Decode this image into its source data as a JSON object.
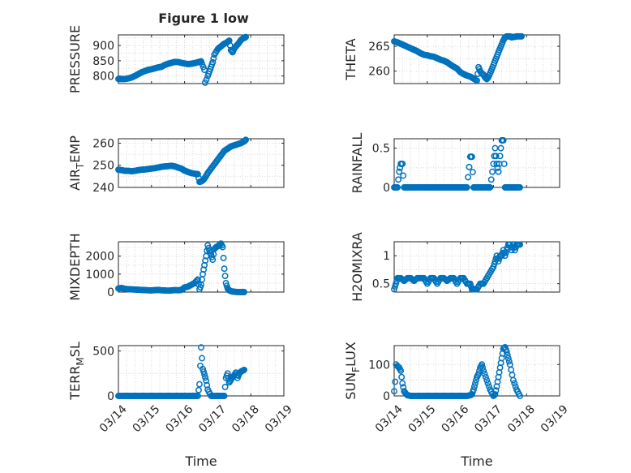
{
  "figure": {
    "title": "Figure 1 low"
  },
  "colors": {
    "series": "#0072bd",
    "axes": "#262626",
    "grid": "#d9d9d9"
  },
  "chart_data": [
    {
      "id": "pressure",
      "type": "scatter",
      "title": "Figure 1 low",
      "ylabel": "PRESSURE",
      "ylabel_sub": "",
      "ylabel_tail": "",
      "xlabel": "",
      "show_x_ticks": false,
      "xlim": [
        0,
        5
      ],
      "ylim": [
        775,
        935
      ],
      "yticks": [
        800,
        850,
        900
      ],
      "x": [
        0,
        0.1,
        0.2,
        0.3,
        0.4,
        0.5,
        0.6,
        0.7,
        0.8,
        0.9,
        1.0,
        1.1,
        1.2,
        1.3,
        1.4,
        1.5,
        1.6,
        1.7,
        1.8,
        1.9,
        2.0,
        2.1,
        2.2,
        2.3,
        2.4,
        2.5,
        2.6,
        2.62,
        2.66,
        2.7,
        2.75,
        2.8,
        2.85,
        2.9,
        3.0,
        3.05,
        3.1,
        3.15,
        3.2,
        3.25,
        3.3,
        3.35,
        3.4,
        3.45,
        3.5,
        3.55,
        3.6,
        3.65,
        3.7,
        3.75,
        3.8,
        3.85
      ],
      "y": [
        790,
        790,
        790,
        792,
        795,
        800,
        806,
        812,
        816,
        820,
        822,
        825,
        828,
        830,
        836,
        840,
        843,
        846,
        846,
        843,
        841,
        839,
        840,
        842,
        845,
        848,
        820,
        778,
        788,
        800,
        815,
        830,
        845,
        870,
        888,
        893,
        897,
        902,
        906,
        908,
        912,
        916,
        885,
        878,
        890,
        897,
        903,
        910,
        918,
        922,
        925,
        928
      ]
    },
    {
      "id": "theta",
      "type": "scatter",
      "ylabel": "THETA",
      "ylabel_sub": "",
      "ylabel_tail": "",
      "xlabel": "",
      "show_x_ticks": false,
      "xlim": [
        0,
        5
      ],
      "ylim": [
        257.5,
        267.3
      ],
      "yticks": [
        260,
        265
      ],
      "x": [
        0,
        0.1,
        0.2,
        0.3,
        0.4,
        0.5,
        0.6,
        0.7,
        0.8,
        0.9,
        1.0,
        1.1,
        1.2,
        1.3,
        1.4,
        1.5,
        1.6,
        1.7,
        1.8,
        1.9,
        2.0,
        2.1,
        2.2,
        2.3,
        2.4,
        2.5,
        2.55,
        2.6,
        2.65,
        2.7,
        2.75,
        2.8,
        2.85,
        2.9,
        2.95,
        3.0,
        3.05,
        3.1,
        3.15,
        3.2,
        3.25,
        3.3,
        3.35,
        3.4,
        3.45,
        3.5,
        3.55,
        3.6,
        3.65,
        3.7,
        3.75,
        3.8,
        3.85
      ],
      "y": [
        266,
        265.8,
        265.5,
        265.2,
        264.9,
        264.6,
        264.3,
        264.0,
        263.6,
        263.3,
        263.2,
        263.0,
        262.9,
        262.6,
        262.3,
        262.1,
        261.8,
        261.3,
        260.9,
        260.5,
        259.8,
        259.4,
        259.1,
        258.9,
        258.5,
        258.1,
        260.8,
        260.0,
        259.5,
        259.3,
        258.7,
        258.4,
        258.8,
        259.6,
        260.4,
        261.2,
        262.1,
        262.9,
        263.8,
        264.6,
        265.4,
        266.2,
        266.8,
        267,
        267,
        267,
        266.8,
        266.9,
        266.9,
        267,
        267,
        267,
        267
      ]
    },
    {
      "id": "air-temp",
      "type": "scatter",
      "ylabel": "AIR",
      "ylabel_sub": "T",
      "ylabel_tail": "EMP",
      "xlabel": "",
      "show_x_ticks": false,
      "xlim": [
        0,
        5
      ],
      "ylim": [
        240,
        262
      ],
      "yticks": [
        240,
        250,
        260
      ],
      "x": [
        0,
        0.1,
        0.2,
        0.3,
        0.4,
        0.5,
        0.6,
        0.7,
        0.8,
        0.9,
        1.0,
        1.1,
        1.2,
        1.3,
        1.4,
        1.5,
        1.6,
        1.7,
        1.8,
        1.9,
        2.0,
        2.1,
        2.2,
        2.3,
        2.4,
        2.45,
        2.5,
        2.55,
        2.6,
        2.65,
        2.7,
        2.8,
        2.9,
        3.0,
        3.1,
        3.2,
        3.3,
        3.4,
        3.5,
        3.6,
        3.7,
        3.8,
        3.85
      ],
      "y": [
        248,
        247.8,
        247.5,
        247.5,
        247.3,
        247.5,
        247.8,
        248.0,
        248.1,
        248.3,
        248.5,
        248.7,
        249.0,
        249.3,
        249.5,
        249.6,
        249.8,
        249.5,
        249.0,
        248.5,
        247.6,
        247.0,
        246.5,
        246.2,
        246.0,
        242.5,
        242.7,
        243.2,
        244.0,
        245.2,
        246.5,
        248.5,
        250.5,
        252.5,
        254.5,
        256.5,
        257.5,
        258.5,
        259.0,
        259.5,
        260.0,
        260.8,
        261.5
      ]
    },
    {
      "id": "rainfall",
      "type": "scatter",
      "ylabel": "RAINFALL",
      "ylabel_sub": "",
      "ylabel_tail": "",
      "xlabel": "",
      "show_x_ticks": false,
      "xlim": [
        0,
        5
      ],
      "ylim": [
        0,
        0.62
      ],
      "yticks": [
        0,
        0.5
      ],
      "ytick_labels": [
        "0",
        "0.5"
      ],
      "x": [
        0,
        0.1,
        0.15,
        0.2,
        0.25,
        0.3,
        0.4,
        0.5,
        0.6,
        0.7,
        0.8,
        0.9,
        1.0,
        1.2,
        1.4,
        1.6,
        1.8,
        2.0,
        2.2,
        2.3,
        2.35,
        2.4,
        2.5,
        2.6,
        2.7,
        2.8,
        2.9,
        3.0,
        3.05,
        3.1,
        3.15,
        3.2,
        3.25,
        3.3,
        3.35,
        3.4,
        3.5,
        3.6,
        3.7,
        3.8
      ],
      "y": [
        0,
        0,
        0.2,
        0.3,
        0.3,
        0,
        0,
        0,
        0,
        0,
        0,
        0,
        0,
        0,
        0,
        0,
        0,
        0,
        0,
        0.39,
        0.39,
        0,
        0,
        0,
        0,
        0,
        0,
        0.3,
        0.5,
        0.3,
        0.2,
        0.4,
        0.6,
        0.6,
        0,
        0,
        0,
        0,
        0,
        0
      ]
    },
    {
      "id": "mixdepth",
      "type": "scatter",
      "ylabel": "MIXDEPTH",
      "ylabel_sub": "",
      "ylabel_tail": "",
      "xlabel": "",
      "show_x_ticks": false,
      "xlim": [
        0,
        5
      ],
      "ylim": [
        0,
        2800
      ],
      "yticks": [
        0,
        1000,
        2000
      ],
      "x": [
        0,
        0.1,
        0.2,
        0.3,
        0.4,
        0.5,
        0.6,
        0.7,
        0.8,
        0.9,
        1.0,
        1.1,
        1.2,
        1.3,
        1.4,
        1.5,
        1.6,
        1.7,
        1.8,
        1.9,
        2.0,
        2.1,
        2.2,
        2.3,
        2.4,
        2.45,
        2.5,
        2.55,
        2.6,
        2.65,
        2.7,
        2.75,
        2.8,
        2.85,
        2.9,
        2.95,
        3.0,
        3.05,
        3.1,
        3.15,
        3.2,
        3.25,
        3.3,
        3.35,
        3.4,
        3.45,
        3.5,
        3.55,
        3.6,
        3.7,
        3.8
      ],
      "y": [
        200,
        230,
        180,
        160,
        150,
        140,
        130,
        120,
        110,
        100,
        90,
        110,
        120,
        100,
        90,
        80,
        90,
        110,
        100,
        120,
        260,
        300,
        400,
        500,
        700,
        150,
        400,
        1000,
        1500,
        2000,
        2600,
        2300,
        2100,
        1800,
        2400,
        2500,
        2550,
        2600,
        2700,
        2500,
        1300,
        500,
        200,
        100,
        50,
        30,
        20,
        10,
        5,
        0,
        0
      ]
    },
    {
      "id": "h2omixra",
      "type": "scatter",
      "ylabel": "H2OMIXRA",
      "ylabel_sub": "",
      "ylabel_tail": "",
      "xlabel": "",
      "show_x_ticks": false,
      "xlim": [
        0,
        5
      ],
      "ylim": [
        0.35,
        1.25
      ],
      "yticks": [
        0.5,
        1
      ],
      "ytick_labels": [
        "0.5",
        "1"
      ],
      "x": [
        0,
        0.05,
        0.1,
        0.2,
        0.3,
        0.4,
        0.5,
        0.6,
        0.7,
        0.8,
        0.9,
        1.0,
        1.1,
        1.2,
        1.3,
        1.4,
        1.5,
        1.6,
        1.7,
        1.8,
        1.9,
        2.0,
        2.1,
        2.2,
        2.3,
        2.35,
        2.4,
        2.5,
        2.6,
        2.7,
        2.8,
        2.9,
        3.0,
        3.05,
        3.1,
        3.15,
        3.2,
        3.25,
        3.3,
        3.35,
        3.4,
        3.45,
        3.5,
        3.55,
        3.6,
        3.65,
        3.7,
        3.8
      ],
      "y": [
        0.4,
        0.5,
        0.6,
        0.6,
        0.55,
        0.6,
        0.6,
        0.55,
        0.6,
        0.6,
        0.6,
        0.5,
        0.6,
        0.6,
        0.5,
        0.6,
        0.6,
        0.55,
        0.6,
        0.6,
        0.5,
        0.6,
        0.6,
        0.5,
        0.5,
        0.4,
        0.4,
        0.4,
        0.5,
        0.5,
        0.6,
        0.7,
        0.8,
        0.9,
        1.0,
        0.9,
        1.0,
        1.0,
        1.1,
        1.0,
        1.1,
        1.2,
        1.2,
        1.1,
        1.2,
        1.1,
        1.2,
        1.2
      ]
    },
    {
      "id": "terr-msl",
      "type": "scatter",
      "ylabel": "TERR",
      "ylabel_sub": "M",
      "ylabel_tail": "SL",
      "xlabel": "Time",
      "show_x_ticks": true,
      "xlim": [
        0,
        5
      ],
      "ylim": [
        0,
        560
      ],
      "yticks": [
        0,
        500
      ],
      "x": [
        0,
        0.1,
        0.2,
        0.3,
        0.4,
        0.5,
        0.6,
        0.7,
        0.8,
        0.9,
        1.0,
        1.1,
        1.2,
        1.3,
        1.4,
        1.5,
        1.6,
        1.7,
        1.8,
        1.9,
        2.0,
        2.1,
        2.2,
        2.3,
        2.4,
        2.45,
        2.5,
        2.55,
        2.6,
        2.65,
        2.7,
        2.8,
        2.9,
        3.0,
        3.1,
        3.2,
        3.25,
        3.3,
        3.35,
        3.4,
        3.45,
        3.5,
        3.55,
        3.6,
        3.65,
        3.7,
        3.75,
        3.8
      ],
      "y": [
        0,
        0,
        0,
        0,
        0,
        0,
        0,
        0,
        0,
        0,
        0,
        0,
        0,
        0,
        0,
        0,
        0,
        0,
        0,
        0,
        0,
        0,
        0,
        0,
        0,
        130,
        540,
        300,
        240,
        170,
        70,
        0,
        0,
        0,
        0,
        0,
        200,
        250,
        150,
        180,
        210,
        230,
        260,
        200,
        250,
        270,
        280,
        290
      ]
    },
    {
      "id": "sun-flux",
      "type": "scatter",
      "ylabel": "SUN",
      "ylabel_sub": "F",
      "ylabel_tail": "LUX",
      "xlabel": "Time",
      "show_x_ticks": true,
      "xlim": [
        0,
        5
      ],
      "ylim": [
        0,
        160
      ],
      "yticks": [
        0,
        100
      ],
      "x": [
        0,
        0.03,
        0.06,
        0.1,
        0.15,
        0.2,
        0.25,
        0.3,
        0.35,
        0.4,
        0.5,
        0.6,
        0.7,
        0.8,
        0.9,
        1.0,
        1.2,
        1.4,
        1.6,
        1.8,
        2.0,
        2.2,
        2.3,
        2.35,
        2.4,
        2.45,
        2.5,
        2.55,
        2.6,
        2.65,
        2.7,
        2.8,
        2.9,
        3.0,
        3.05,
        3.1,
        3.15,
        3.2,
        3.25,
        3.3,
        3.35,
        3.4,
        3.45,
        3.5,
        3.6,
        3.7,
        3.8
      ],
      "y": [
        15,
        45,
        100,
        95,
        90,
        80,
        40,
        15,
        8,
        2,
        0,
        0,
        0,
        0,
        0,
        0,
        0,
        0,
        0,
        0,
        0,
        0,
        2,
        5,
        20,
        40,
        60,
        70,
        90,
        100,
        80,
        50,
        20,
        0,
        5,
        30,
        60,
        90,
        120,
        150,
        155,
        140,
        120,
        100,
        50,
        20,
        0
      ]
    }
  ],
  "x_ticks": {
    "values": [
      0,
      1,
      2,
      3,
      4,
      5
    ],
    "labels": [
      "03/14",
      "03/15",
      "03/16",
      "03/17",
      "03/18",
      "03/19"
    ]
  }
}
